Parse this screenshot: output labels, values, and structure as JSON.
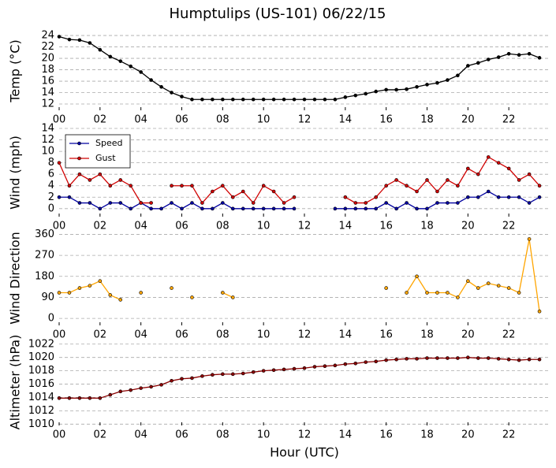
{
  "chart_data": [
    {
      "type": "line",
      "title": "Humptulips (US-101) 06/22/15",
      "ylabel": "Temp ($^\\circ$C)",
      "x": [
        0,
        0.5,
        1,
        1.5,
        2,
        2.5,
        3,
        3.5,
        4,
        4.5,
        5,
        5.5,
        6,
        6.5,
        7,
        7.5,
        8,
        8.5,
        9,
        9.5,
        10,
        10.5,
        11,
        11.5,
        12,
        12.5,
        13,
        13.5,
        14,
        14.5,
        15,
        15.5,
        16,
        16.5,
        17,
        17.5,
        18,
        18.5,
        19,
        19.5,
        20,
        20.5,
        21,
        21.5,
        22,
        22.5,
        23,
        23.5
      ],
      "series": [
        {
          "name": "Temp",
          "color": "#000000",
          "values": [
            23.8,
            23.3,
            23.2,
            22.7,
            21.5,
            20.3,
            19.5,
            18.6,
            17.6,
            16.2,
            15,
            14,
            13.3,
            12.8,
            12.8,
            12.8,
            12.8,
            12.8,
            12.8,
            12.8,
            12.8,
            12.8,
            12.8,
            12.8,
            12.8,
            12.8,
            12.8,
            12.8,
            13.2,
            13.5,
            13.8,
            14.2,
            14.5,
            14.5,
            14.6,
            15,
            15.4,
            15.7,
            16.2,
            17,
            18.7,
            19.2,
            19.8,
            20.2,
            20.8,
            20.6,
            20.8,
            20.1
          ]
        }
      ],
      "xlim": [
        0,
        24
      ],
      "xticks": [
        {
          "value": 0,
          "label": "00"
        },
        {
          "value": 2,
          "label": "02"
        },
        {
          "value": 4,
          "label": "04"
        },
        {
          "value": 6,
          "label": "06"
        },
        {
          "value": 8,
          "label": "08"
        },
        {
          "value": 10,
          "label": "10"
        },
        {
          "value": 12,
          "label": "12"
        },
        {
          "value": 14,
          "label": "14"
        },
        {
          "value": 16,
          "label": "16"
        },
        {
          "value": 18,
          "label": "18"
        },
        {
          "value": 20,
          "label": "20"
        },
        {
          "value": 22,
          "label": "22"
        }
      ],
      "ylim": [
        10.9,
        24.7
      ],
      "yticks": [
        12,
        14,
        16,
        18,
        20,
        22,
        24
      ],
      "grid": true
    },
    {
      "type": "line",
      "ylabel": "Wind (mph)",
      "legend": "upper left",
      "x": [
        0,
        0.5,
        1,
        1.5,
        2,
        2.5,
        3,
        3.5,
        4,
        4.5,
        5,
        5.5,
        6,
        6.5,
        7,
        7.5,
        8,
        8.5,
        9,
        9.5,
        10,
        10.5,
        11,
        11.5,
        12,
        12.5,
        13,
        13.5,
        14,
        14.5,
        15,
        15.5,
        16,
        16.5,
        17,
        17.5,
        18,
        18.5,
        19,
        19.5,
        20,
        20.5,
        21,
        21.5,
        22,
        22.5,
        23,
        23.5
      ],
      "series": [
        {
          "name": "Speed",
          "color": "#0000a0",
          "values": [
            2,
            2,
            1,
            1,
            0,
            1,
            1,
            0,
            1,
            0,
            0,
            1,
            0,
            1,
            0,
            0,
            1,
            0,
            0,
            0,
            0,
            0,
            0,
            0,
            null,
            null,
            null,
            0,
            0,
            0,
            0,
            0,
            1,
            0,
            1,
            0,
            0,
            1,
            1,
            1,
            2,
            2,
            3,
            2,
            2,
            2,
            1,
            2
          ]
        },
        {
          "name": "Gust",
          "color": "#d00000",
          "values": [
            8,
            4,
            6,
            5,
            6,
            4,
            5,
            4,
            1,
            1,
            null,
            4,
            4,
            4,
            1,
            3,
            4,
            2,
            3,
            1,
            4,
            3,
            1,
            2,
            null,
            null,
            null,
            null,
            2,
            1,
            1,
            2,
            4,
            5,
            4,
            3,
            5,
            3,
            5,
            4,
            7,
            6,
            9,
            8,
            7,
            5,
            6,
            4
          ]
        }
      ],
      "xlim": [
        0,
        24
      ],
      "xticks": [
        {
          "value": 0,
          "label": "00"
        },
        {
          "value": 2,
          "label": "02"
        },
        {
          "value": 4,
          "label": "04"
        },
        {
          "value": 6,
          "label": "06"
        },
        {
          "value": 8,
          "label": "08"
        },
        {
          "value": 10,
          "label": "10"
        },
        {
          "value": 12,
          "label": "12"
        },
        {
          "value": 14,
          "label": "14"
        },
        {
          "value": 16,
          "label": "16"
        },
        {
          "value": 18,
          "label": "18"
        },
        {
          "value": 20,
          "label": "20"
        },
        {
          "value": 22,
          "label": "22"
        }
      ],
      "ylim": [
        -1.4,
        14
      ],
      "yticks": [
        0,
        2,
        4,
        6,
        8,
        10,
        12,
        14
      ],
      "grid": true
    },
    {
      "type": "line",
      "ylabel": "Wind Direction",
      "x": [
        0,
        0.5,
        1,
        1.5,
        2,
        2.5,
        3,
        3.5,
        4,
        4.5,
        5,
        5.5,
        6,
        6.5,
        7,
        7.5,
        8,
        8.5,
        9,
        9.5,
        10,
        10.5,
        11,
        11.5,
        12,
        12.5,
        13,
        13.5,
        14,
        14.5,
        15,
        15.5,
        16,
        16.5,
        17,
        17.5,
        18,
        18.5,
        19,
        19.5,
        20,
        20.5,
        21,
        21.5,
        22,
        22.5,
        23,
        23.5
      ],
      "series": [
        {
          "name": "Direction",
          "color": "#ffa500",
          "values": [
            110,
            110,
            130,
            140,
            160,
            100,
            80,
            null,
            110,
            null,
            null,
            130,
            null,
            90,
            null,
            null,
            110,
            90,
            null,
            null,
            null,
            null,
            null,
            null,
            null,
            null,
            null,
            null,
            null,
            null,
            null,
            null,
            130,
            null,
            110,
            180,
            110,
            110,
            110,
            90,
            160,
            130,
            150,
            140,
            130,
            110,
            340,
            30
          ]
        }
      ],
      "xlim": [
        0,
        24
      ],
      "xticks": [
        {
          "value": 0,
          "label": "00"
        },
        {
          "value": 2,
          "label": "02"
        },
        {
          "value": 4,
          "label": "04"
        },
        {
          "value": 6,
          "label": "06"
        },
        {
          "value": 8,
          "label": "08"
        },
        {
          "value": 10,
          "label": "10"
        },
        {
          "value": 12,
          "label": "12"
        },
        {
          "value": 14,
          "label": "14"
        },
        {
          "value": 16,
          "label": "16"
        },
        {
          "value": 18,
          "label": "18"
        },
        {
          "value": 20,
          "label": "20"
        },
        {
          "value": 22,
          "label": "22"
        }
      ],
      "ylim": [
        -30,
        375
      ],
      "yticks": [
        0,
        90,
        180,
        270,
        360
      ],
      "grid": true
    },
    {
      "type": "line",
      "ylabel": "Altimeter (hPa)",
      "xlabel": "Hour (UTC)",
      "x": [
        0,
        0.5,
        1,
        1.5,
        2,
        2.5,
        3,
        3.5,
        4,
        4.5,
        5,
        5.5,
        6,
        6.5,
        7,
        7.5,
        8,
        8.5,
        9,
        9.5,
        10,
        10.5,
        11,
        11.5,
        12,
        12.5,
        13,
        13.5,
        14,
        14.5,
        15,
        15.5,
        16,
        16.5,
        17,
        17.5,
        18,
        18.5,
        19,
        19.5,
        20,
        20.5,
        21,
        21.5,
        22,
        22.5,
        23,
        23.5
      ],
      "series": [
        {
          "name": "Altimeter",
          "color": "#8b0000",
          "values": [
            1013.9,
            1013.9,
            1013.9,
            1013.9,
            1013.9,
            1014.4,
            1014.9,
            1015.1,
            1015.4,
            1015.6,
            1015.9,
            1016.5,
            1016.8,
            1016.9,
            1017.2,
            1017.4,
            1017.5,
            1017.5,
            1017.6,
            1017.8,
            1018,
            1018.1,
            1018.2,
            1018.3,
            1018.4,
            1018.6,
            1018.7,
            1018.8,
            1019,
            1019.1,
            1019.3,
            1019.4,
            1019.6,
            1019.7,
            1019.8,
            1019.8,
            1019.9,
            1019.9,
            1019.9,
            1019.9,
            1020,
            1019.9,
            1019.9,
            1019.8,
            1019.7,
            1019.6,
            1019.7,
            1019.7
          ]
        }
      ],
      "xlim": [
        0,
        24
      ],
      "xticks": [
        {
          "value": 0,
          "label": "00"
        },
        {
          "value": 2,
          "label": "02"
        },
        {
          "value": 4,
          "label": "04"
        },
        {
          "value": 6,
          "label": "06"
        },
        {
          "value": 8,
          "label": "08"
        },
        {
          "value": 10,
          "label": "10"
        },
        {
          "value": 12,
          "label": "12"
        },
        {
          "value": 14,
          "label": "14"
        },
        {
          "value": 16,
          "label": "16"
        },
        {
          "value": 18,
          "label": "18"
        },
        {
          "value": 20,
          "label": "20"
        },
        {
          "value": 22,
          "label": "22"
        }
      ],
      "ylim": [
        1009.8,
        1022.8
      ],
      "yticks": [
        1010,
        1012,
        1014,
        1016,
        1018,
        1020,
        1022
      ],
      "grid": true
    }
  ]
}
